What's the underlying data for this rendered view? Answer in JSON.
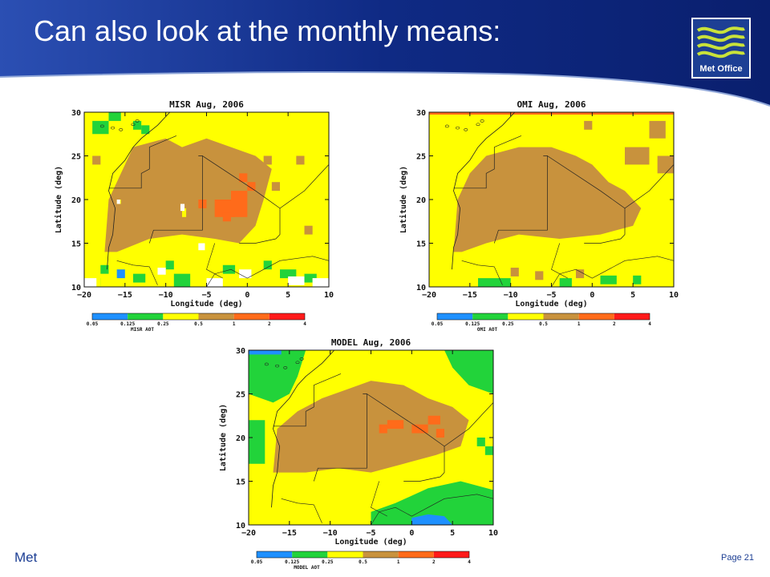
{
  "slide": {
    "title": "Can also look at the monthly means:",
    "footer_left": "Met",
    "page_number": "Page 21",
    "logo_text": "Met Office",
    "colors": {
      "banner": "#0f2a84",
      "banner_light": "#2b4fb3",
      "accent": "#1d3f94"
    }
  },
  "colormap": {
    "levels": [
      "0.05",
      "0.125",
      "0.25",
      "0.5",
      "1",
      "2",
      "4"
    ],
    "colors": [
      "#1e90ff",
      "#22d33a",
      "#ffff00",
      "#c8923d",
      "#ff6b1a",
      "#ff1a1a"
    ]
  },
  "maps": [
    {
      "title": "MISR Aug, 2006",
      "cb_label": "MISR AOT",
      "xlabel": "Longitude (deg)",
      "ylabel": "Latitude (deg)",
      "xticks": [
        "−20",
        "−15",
        "−10",
        "−5",
        "0",
        "5",
        "10"
      ],
      "yticks": [
        "30",
        "25",
        "20",
        "15",
        "10"
      ]
    },
    {
      "title": "OMI Aug, 2006",
      "cb_label": "OMI AOT",
      "xlabel": "Longitude (deg)",
      "ylabel": "Latitude (deg)",
      "xticks": [
        "−20",
        "−15",
        "−10",
        "−5",
        "0",
        "5",
        "10"
      ],
      "yticks": [
        "30",
        "25",
        "20",
        "15",
        "10"
      ]
    },
    {
      "title": "MODEL Aug, 2006",
      "cb_label": "MODEL AOT",
      "xlabel": "Longitude (deg)",
      "ylabel": "Latitude (deg)",
      "xticks": [
        "−20",
        "−15",
        "−10",
        "−5",
        "0",
        "5",
        "10"
      ],
      "yticks": [
        "30",
        "25",
        "20",
        "15",
        "10"
      ]
    }
  ]
}
